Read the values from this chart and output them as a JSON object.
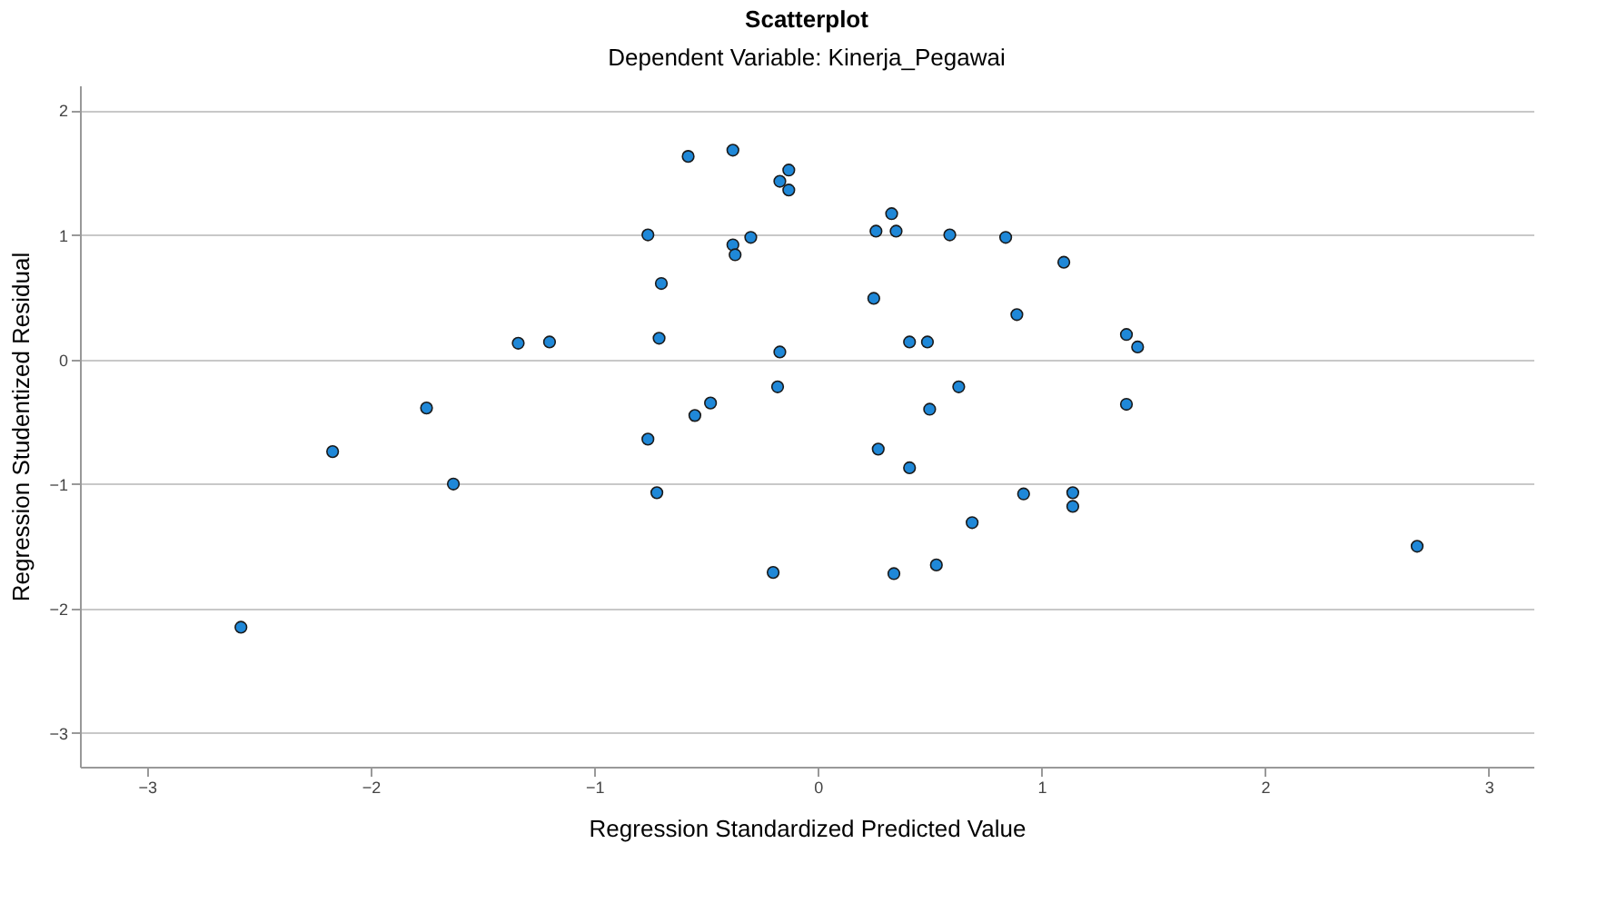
{
  "chart_data": {
    "type": "scatter",
    "title": "Scatterplot",
    "subtitle": "Dependent Variable: Kinerja_Pegawai",
    "xlabel": "Regression Standardized Predicted Value",
    "ylabel": "Regression Studentized Residual",
    "x": [
      -2.58,
      -2.17,
      -1.75,
      -1.63,
      -1.34,
      -1.2,
      -0.76,
      -0.76,
      -0.72,
      -0.7,
      -0.71,
      -0.58,
      -0.55,
      -0.48,
      -0.38,
      -0.38,
      -0.37,
      -0.3,
      -0.2,
      -0.18,
      -0.17,
      -0.17,
      -0.13,
      -0.13,
      0.25,
      0.26,
      0.27,
      0.33,
      0.35,
      0.34,
      0.41,
      0.41,
      0.49,
      0.5,
      0.53,
      0.59,
      0.63,
      0.69,
      0.84,
      0.89,
      0.92,
      1.1,
      1.14,
      1.14,
      1.38,
      1.38,
      1.43,
      2.68
    ],
    "series": [
      {
        "color": "#1f88d8",
        "values": [
          -2.15,
          -0.74,
          -0.39,
          -1.0,
          0.13,
          0.14,
          1.0,
          -0.64,
          -1.07,
          0.61,
          0.17,
          1.63,
          -0.45,
          -0.35,
          1.68,
          0.92,
          0.84,
          0.98,
          -1.71,
          -0.22,
          0.06,
          1.43,
          1.52,
          1.36,
          0.49,
          1.03,
          -0.72,
          1.17,
          1.03,
          -1.72,
          0.14,
          -0.87,
          0.14,
          -0.4,
          -1.65,
          1.0,
          -0.22,
          -1.31,
          0.98,
          0.36,
          -1.08,
          0.78,
          -1.07,
          -1.18,
          0.2,
          -0.36,
          0.1,
          -1.5
        ]
      }
    ],
    "xlim": [
      -3.3,
      3.2
    ],
    "xticks": [
      -3,
      -2,
      -1,
      0,
      1,
      2,
      3
    ],
    "ylim": [
      -3.27,
      2.2
    ],
    "yticks": [
      -3,
      -2,
      -1,
      0,
      1,
      2
    ],
    "grid": "y",
    "marker": "circle"
  }
}
